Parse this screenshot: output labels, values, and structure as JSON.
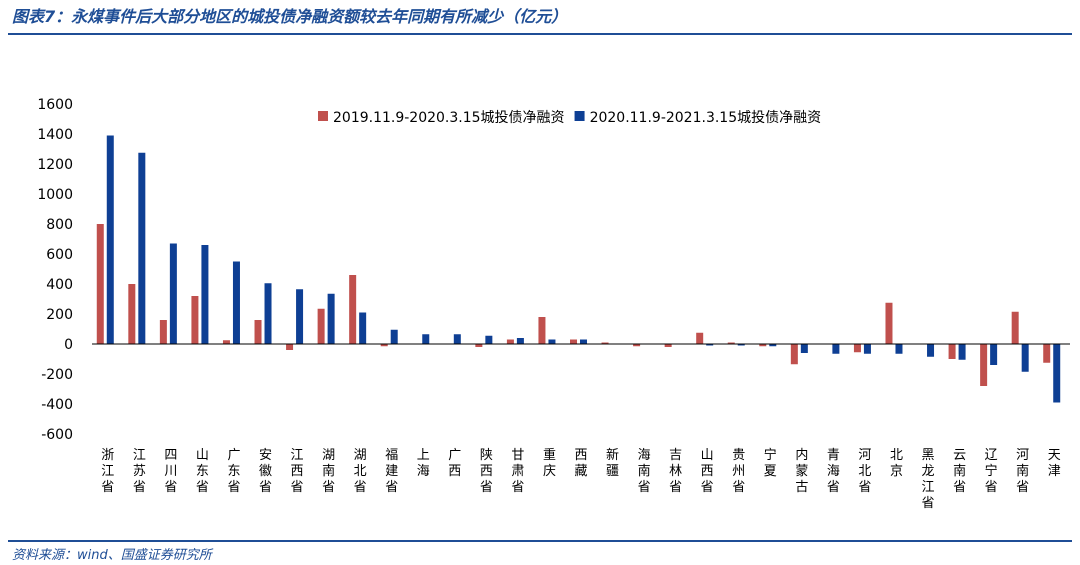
{
  "header": {
    "title": "图表7：永煤事件后大部分地区的城投债净融资额较去年同期有所减少（亿元）"
  },
  "footer": {
    "source": "资料来源：wind、国盛证券研究所"
  },
  "colors": {
    "series1": "#c0504d",
    "series2": "#0e3f94",
    "accent": "#1f4e96"
  },
  "chart_data": {
    "type": "bar",
    "title": "",
    "xlabel": "",
    "ylabel": "",
    "ylim": [
      -600,
      1600
    ],
    "yticks": [
      1600,
      1400,
      1200,
      1000,
      800,
      600,
      400,
      200,
      0,
      -200,
      -400,
      -600
    ],
    "grid": false,
    "legend_position": "top-right",
    "categories": [
      "浙江省",
      "江苏省",
      "四川省",
      "山东省",
      "广东省",
      "安徽省",
      "江西省",
      "湖南省",
      "湖北省",
      "福建省",
      "上海",
      "广西",
      "陕西省",
      "甘肃省",
      "重庆",
      "西藏",
      "新疆",
      "海南省",
      "吉林省",
      "山西省",
      "贵州省",
      "宁夏",
      "内蒙古",
      "青海省",
      "河北省",
      "北京",
      "黑龙江省",
      "云南省",
      "辽宁省",
      "河南省",
      "天津"
    ],
    "series": [
      {
        "name": "2019.11.9-2020.3.15城投债净融资",
        "values": [
          800,
          400,
          160,
          320,
          25,
          160,
          -40,
          235,
          460,
          -15,
          0,
          0,
          -20,
          30,
          180,
          30,
          10,
          -15,
          -20,
          75,
          10,
          -15,
          -135,
          0,
          -55,
          275,
          0,
          -100,
          -280,
          215,
          -125
        ]
      },
      {
        "name": "2020.11.9-2021.3.15城投债净融资",
        "values": [
          1390,
          1275,
          670,
          660,
          550,
          405,
          365,
          335,
          210,
          95,
          65,
          65,
          55,
          40,
          30,
          30,
          0,
          0,
          0,
          -10,
          -10,
          -15,
          -60,
          -65,
          -65,
          -65,
          -85,
          -105,
          -140,
          -185,
          -390
        ]
      }
    ]
  }
}
